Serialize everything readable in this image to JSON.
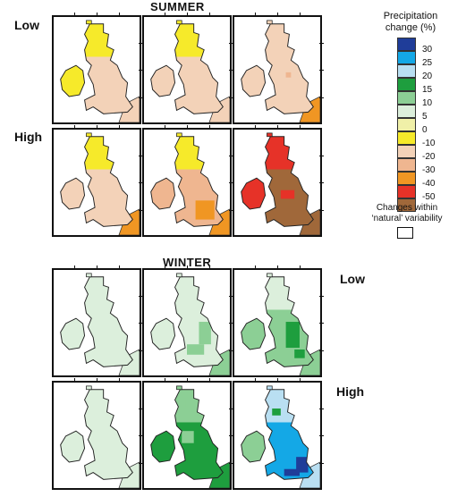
{
  "summer": {
    "title": "SUMMER",
    "low": "Low",
    "high": "High"
  },
  "winter": {
    "title": "WINTER",
    "low": "Low",
    "high": "High"
  },
  "legend": {
    "title_line1": "Precipitation",
    "title_line2": "change (%)",
    "entries": [
      {
        "label": "30",
        "color": "#1f3d99"
      },
      {
        "label": "25",
        "color": "#14a8e6"
      },
      {
        "label": "20",
        "color": "#b9dff2"
      },
      {
        "label": "15",
        "color": "#1e9e3e"
      },
      {
        "label": "10",
        "color": "#8ccf95"
      },
      {
        "label": "5",
        "color": "#dcefdc"
      },
      {
        "label": "0",
        "color": "#f0f0a8"
      },
      {
        "label": "-10",
        "color": "#f6ea2a"
      },
      {
        "label": "-20",
        "color": "#f3d2b8"
      },
      {
        "label": "-30",
        "color": "#efb690"
      },
      {
        "label": "-40",
        "color": "#f09623"
      },
      {
        "label": "-50",
        "color": "#e63228"
      },
      {
        "label": "",
        "color": "#a0683a"
      }
    ],
    "natural_line1": "Changes within",
    "natural_line2": "‘natural’ variability"
  }
}
